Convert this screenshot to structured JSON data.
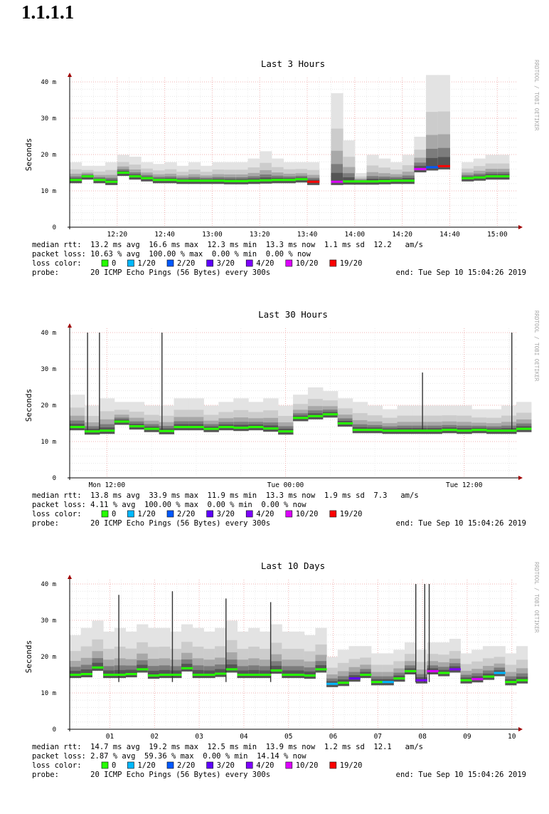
{
  "page": {
    "title": "1.1.1.1"
  },
  "colors": {
    "loss_0": "#26ff00",
    "loss_1_20": "#00b8ff",
    "loss_2_20": "#0059ff",
    "loss_3_20": "#5e00ff",
    "loss_4_20": "#7e00ff",
    "loss_10_20": "#dd00ff",
    "loss_19_20": "#ff0000"
  },
  "chart_data": [
    {
      "type": "area",
      "title": "Last 3 Hours",
      "ylabel": "Seconds",
      "ylim": [
        0,
        40
      ],
      "y_ticks": [
        {
          "v": 0,
          "label": "0"
        },
        {
          "v": 10,
          "label": "10 m"
        },
        {
          "v": 20,
          "label": "20 m"
        },
        {
          "v": 30,
          "label": "30 m"
        },
        {
          "v": 40,
          "label": "40 m"
        }
      ],
      "x_unit": "minutes",
      "xlim": [
        0,
        188
      ],
      "x_ticks": [
        {
          "x": 20,
          "label": "12:20"
        },
        {
          "x": 40,
          "label": "12:40"
        },
        {
          "x": 60,
          "label": "13:00"
        },
        {
          "x": 80,
          "label": "13:20"
        },
        {
          "x": 100,
          "label": "13:40"
        },
        {
          "x": 120,
          "label": "14:00"
        },
        {
          "x": 140,
          "label": "14:20"
        },
        {
          "x": 160,
          "label": "14:40"
        },
        {
          "x": 180,
          "label": "15:00"
        }
      ],
      "series": [
        {
          "x": [
            0,
            5,
            10,
            15,
            20,
            25,
            30,
            35,
            40,
            45,
            50,
            55,
            60,
            65,
            70,
            75,
            80,
            85,
            90,
            95,
            100,
            105,
            110,
            115,
            120,
            125,
            130,
            135,
            140,
            145,
            150,
            155,
            160,
            165,
            170,
            175,
            180,
            185
          ],
          "median": [
            13,
            14,
            13,
            12.5,
            15,
            14,
            13.5,
            13,
            13,
            12.8,
            12.8,
            12.8,
            12.8,
            12.7,
            12.7,
            12.8,
            12.9,
            13,
            13,
            13.2,
            12.5,
            null,
            12.5,
            12.6,
            12.6,
            12.6,
            12.7,
            12.8,
            12.8,
            16,
            16.5,
            16.8,
            null,
            13.5,
            13.7,
            14,
            14,
            null
          ],
          "max": [
            17,
            16,
            16,
            17,
            19,
            18.5,
            17,
            16.5,
            17,
            16,
            17,
            16,
            17,
            17,
            17,
            18,
            20,
            18,
            17,
            17,
            17,
            null,
            36,
            23,
            14,
            19,
            18,
            17,
            19,
            24,
            41,
            41,
            null,
            17,
            18,
            19,
            19,
            null
          ],
          "loss": [
            0,
            0,
            0,
            0,
            0,
            0,
            0,
            0,
            0,
            0,
            0,
            0,
            0,
            0,
            0,
            0,
            0,
            0,
            0,
            0,
            19,
            null,
            10,
            0,
            0,
            0,
            0,
            0,
            0,
            10,
            2,
            19,
            null,
            0,
            0,
            0,
            0,
            null
          ]
        }
      ],
      "summary": {
        "median_rtt": "median rtt:  13.2 ms avg  16.6 ms max  12.3 ms min  13.3 ms now  1.1 ms sd  12.2   am/s",
        "packet_loss": "packet loss: 10.63 % avg  100.00 % max  0.00 % min  0.00 % now",
        "probe": "probe:       20 ICMP Echo Pings (56 Bytes) every 300s",
        "end": "end: Tue Sep 10 15:04:26 2019"
      }
    },
    {
      "type": "area",
      "title": "Last 30 Hours",
      "ylabel": "Seconds",
      "ylim": [
        0,
        40
      ],
      "y_ticks": [
        {
          "v": 0,
          "label": "0"
        },
        {
          "v": 10,
          "label": "10 m"
        },
        {
          "v": 20,
          "label": "20 m"
        },
        {
          "v": 30,
          "label": "30 m"
        },
        {
          "v": 40,
          "label": "40 m"
        }
      ],
      "x_unit": "hours",
      "xlim": [
        9.5,
        39.5
      ],
      "x_ticks": [
        {
          "x": 12,
          "label": "Mon 12:00"
        },
        {
          "x": 24,
          "label": "Tue 00:00"
        },
        {
          "x": 36,
          "label": "Tue 12:00"
        }
      ],
      "spikes": [
        {
          "x": 10.7,
          "y": 40
        },
        {
          "x": 11.5,
          "y": 40
        },
        {
          "x": 15.7,
          "y": 40
        },
        {
          "x": 33.2,
          "y": 29
        },
        {
          "x": 39.2,
          "y": 40
        }
      ],
      "series": [
        {
          "x": [
            9.5,
            10.5,
            11.5,
            12.5,
            13.5,
            14.5,
            15.5,
            16.5,
            17.5,
            18.5,
            19.5,
            20.5,
            21.5,
            22.5,
            23.5,
            24.5,
            25.5,
            26.5,
            27.5,
            28.5,
            29.5,
            30.5,
            31.5,
            32.5,
            33.5,
            34.5,
            35.5,
            36.5,
            37.5,
            38.5,
            39.5
          ],
          "median": [
            14,
            12.8,
            13,
            15.5,
            14.2,
            13.5,
            12.9,
            14,
            14,
            13.5,
            14,
            13.8,
            14,
            13.6,
            12.8,
            16.5,
            17,
            17.5,
            15,
            13.2,
            13.2,
            13,
            13,
            13,
            13,
            13.2,
            13,
            13.2,
            13,
            13,
            13.5
          ],
          "max": [
            22,
            19,
            21,
            20,
            20,
            19,
            19,
            21,
            21,
            19,
            20,
            21,
            20,
            21,
            19,
            22,
            24,
            23,
            21,
            20,
            19,
            18,
            19,
            19,
            19,
            19,
            19,
            18,
            18,
            19,
            20
          ],
          "loss": [
            0,
            0,
            0,
            0,
            0,
            0,
            0,
            0,
            0,
            0,
            0,
            0,
            0,
            0,
            0,
            0,
            0,
            0,
            0,
            0,
            0,
            0,
            0,
            0,
            0,
            0,
            0,
            0,
            0,
            0,
            0
          ]
        }
      ],
      "summary": {
        "median_rtt": "median rtt:  13.8 ms avg  33.9 ms max  11.9 ms min  13.3 ms now  1.9 ms sd  7.3   am/s",
        "packet_loss": "packet loss: 4.11 % avg  100.00 % max  0.00 % min  0.00 % now",
        "probe": "probe:       20 ICMP Echo Pings (56 Bytes) every 300s",
        "end": "end: Tue Sep 10 15:04:26 2019"
      }
    },
    {
      "type": "area",
      "title": "Last 10 Days",
      "ylabel": "Seconds",
      "ylim": [
        0,
        40
      ],
      "y_ticks": [
        {
          "v": 0,
          "label": "0"
        },
        {
          "v": 10,
          "label": "10 m"
        },
        {
          "v": 20,
          "label": "20 m"
        },
        {
          "v": 30,
          "label": "30 m"
        },
        {
          "v": 40,
          "label": "40 m"
        }
      ],
      "x_unit": "days",
      "xlim": [
        0.1,
        10.1
      ],
      "x_ticks": [
        {
          "x": 1,
          "label": "01"
        },
        {
          "x": 2,
          "label": "02"
        },
        {
          "x": 3,
          "label": "03"
        },
        {
          "x": 4,
          "label": "04"
        },
        {
          "x": 5,
          "label": "05"
        },
        {
          "x": 6,
          "label": "06"
        },
        {
          "x": 7,
          "label": "07"
        },
        {
          "x": 8,
          "label": "08"
        },
        {
          "x": 9,
          "label": "09"
        },
        {
          "x": 10,
          "label": "10"
        }
      ],
      "spikes": [
        {
          "x": 7.85,
          "y": 40
        },
        {
          "x": 8.05,
          "y": 40
        },
        {
          "x": 8.15,
          "y": 40
        },
        {
          "x": 1.2,
          "y": 37
        },
        {
          "x": 2.4,
          "y": 38
        },
        {
          "x": 3.6,
          "y": 36
        },
        {
          "x": 4.6,
          "y": 35
        }
      ],
      "series": [
        {
          "x": [
            0.1,
            0.35,
            0.6,
            0.85,
            1.1,
            1.35,
            1.6,
            1.85,
            2.1,
            2.35,
            2.6,
            2.85,
            3.1,
            3.35,
            3.6,
            3.85,
            4.1,
            4.35,
            4.6,
            4.85,
            5.1,
            5.35,
            5.6,
            5.85,
            6.1,
            6.35,
            6.6,
            6.85,
            7.1,
            7.35,
            7.6,
            7.85,
            8.1,
            8.35,
            8.6,
            8.85,
            9.1,
            9.35,
            9.6,
            9.85,
            10.1
          ],
          "median": [
            15,
            15.2,
            17,
            15,
            15,
            15.2,
            16.5,
            14.8,
            15,
            15,
            16.8,
            15,
            15,
            15.3,
            16.5,
            15,
            15,
            15,
            16.2,
            15,
            15,
            14.8,
            16.5,
            12.5,
            12.8,
            14,
            15,
            13,
            13,
            14,
            16,
            13.5,
            16,
            15.5,
            16.5,
            13.5,
            13.8,
            14.5,
            15.5,
            13,
            13.5
          ],
          "max": [
            25,
            27,
            29,
            26,
            27,
            26,
            28,
            27,
            27,
            26,
            28,
            27,
            26,
            27,
            29,
            26,
            27,
            26,
            28,
            26,
            26,
            25,
            27,
            19,
            21,
            22,
            22,
            20,
            20,
            21,
            23,
            21,
            23,
            23,
            24,
            20,
            21,
            22,
            22,
            20,
            22
          ],
          "loss": [
            0,
            0,
            0,
            0,
            0,
            0,
            0,
            0,
            0,
            0,
            0,
            0,
            0,
            0,
            0,
            0,
            0,
            0,
            0,
            0,
            0,
            0,
            0,
            1,
            0,
            3,
            0,
            0,
            1,
            0,
            0,
            4,
            10,
            0,
            4,
            0,
            10,
            0,
            1,
            0,
            0
          ]
        }
      ],
      "summary": {
        "median_rtt": "median rtt:  14.7 ms avg  19.2 ms max  12.5 ms min  13.9 ms now  1.2 ms sd  12.1   am/s",
        "packet_loss": "packet loss: 2.87 % avg  59.36 % max  0.00 % min  14.14 % now",
        "probe": "probe:       20 ICMP Echo Pings (56 Bytes) every 300s",
        "end": "end: Tue Sep 10 15:04:26 2019"
      }
    }
  ],
  "legend": {
    "label": "loss color:",
    "items": [
      {
        "label": "0",
        "color": "#26ff00"
      },
      {
        "label": "1/20",
        "color": "#00b8ff"
      },
      {
        "label": "2/20",
        "color": "#0059ff"
      },
      {
        "label": "3/20",
        "color": "#5e00ff"
      },
      {
        "label": "4/20",
        "color": "#7e00ff"
      },
      {
        "label": "10/20",
        "color": "#dd00ff"
      },
      {
        "label": "19/20",
        "color": "#ff0000"
      }
    ]
  },
  "watermark": "RRDTOOL / TOBI OETIKER"
}
